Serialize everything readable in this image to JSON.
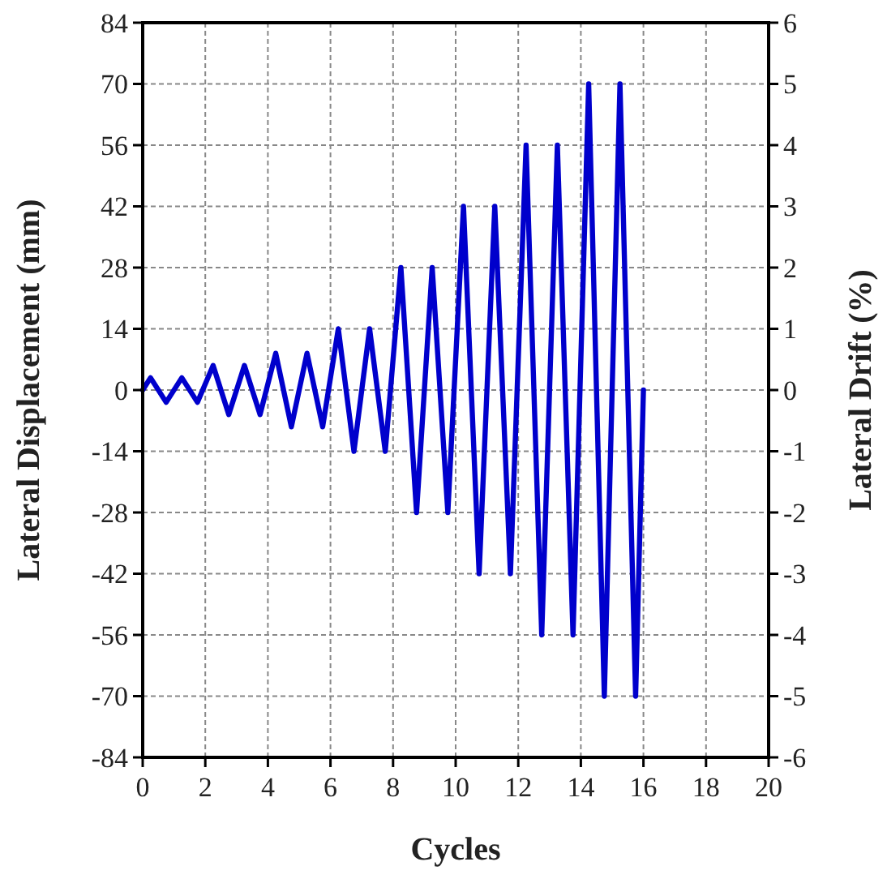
{
  "chart_data": {
    "type": "line",
    "xlabel": "Cycles",
    "ylabel": "Lateral Displacement (mm)",
    "y2label": "Lateral Drift (%)",
    "series": [
      {
        "color": "#0000cc",
        "x": [
          0,
          0.25,
          0.75,
          1.25,
          1.75,
          2.25,
          2.75,
          3.25,
          3.75,
          4.25,
          4.75,
          5.25,
          5.75,
          6.25,
          6.75,
          7.25,
          7.75,
          8.25,
          8.75,
          9.25,
          9.75,
          10.25,
          10.75,
          11.25,
          11.75,
          12.25,
          12.75,
          13.25,
          13.75,
          14.25,
          14.75,
          15.25,
          15.75,
          16
        ],
        "values": [
          0,
          2.8,
          -2.8,
          2.8,
          -2.8,
          5.6,
          -5.6,
          5.6,
          -5.6,
          8.4,
          -8.4,
          8.4,
          -8.4,
          14,
          -14,
          14,
          -14,
          28,
          -28,
          28,
          -28,
          42,
          -42,
          42,
          -42,
          56,
          -56,
          56,
          -56,
          70,
          -70,
          70,
          -70,
          0
        ]
      }
    ],
    "xlim": [
      0,
      20
    ],
    "xticks": [
      0,
      2,
      4,
      6,
      8,
      10,
      12,
      14,
      16,
      18,
      20
    ],
    "ylim": [
      -84,
      84
    ],
    "yticks": [
      -84,
      -70,
      -56,
      -42,
      -28,
      -14,
      0,
      14,
      28,
      42,
      56,
      70,
      84
    ],
    "y2lim": [
      -6,
      6
    ],
    "y2ticks": [
      -6,
      -5,
      -4,
      -3,
      -2,
      -1,
      0,
      1,
      2,
      3,
      4,
      5,
      6
    ],
    "grid": true,
    "marker": "none",
    "line_style": "solid"
  }
}
